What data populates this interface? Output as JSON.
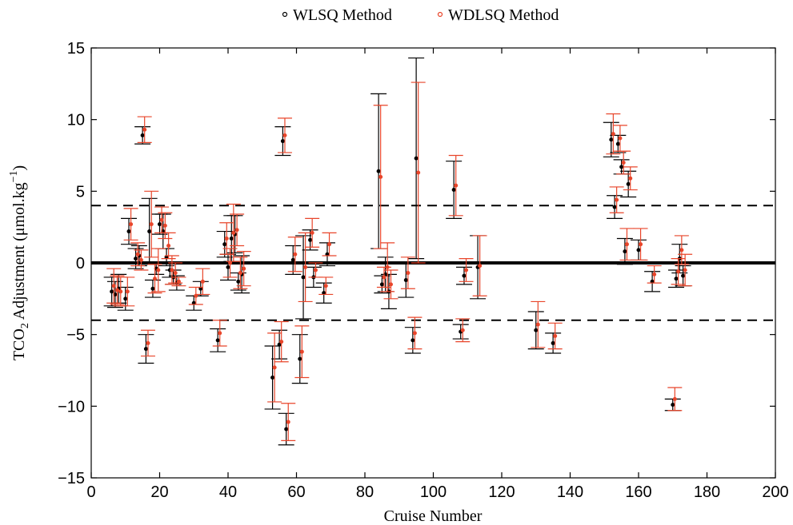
{
  "chart_data": {
    "type": "scatter",
    "xlabel": "Cruise Number",
    "ylabel_main": "TCO",
    "ylabel_sub": "2",
    "ylabel_rest": " Adjustment (μmol.kg",
    "ylabel_sup": "−1",
    "ylabel_close": ")",
    "xlim": [
      0,
      200
    ],
    "ylim": [
      -15,
      15
    ],
    "xticks": [
      "0",
      "20",
      "40",
      "60",
      "80",
      "100",
      "120",
      "140",
      "160",
      "180",
      "200"
    ],
    "yticks": [
      "−15",
      "−10",
      "−5",
      "0",
      "5",
      "10",
      "15"
    ],
    "xtick_values": [
      0,
      20,
      40,
      60,
      80,
      100,
      120,
      140,
      160,
      180,
      200
    ],
    "ytick_values": [
      -15,
      -10,
      -5,
      0,
      5,
      10,
      15
    ],
    "grid": false,
    "legend_position": "top-outside",
    "reference_lines": {
      "zero": 0,
      "dashed": [
        4,
        -4
      ]
    },
    "series": [
      {
        "name": "WLSQ Method",
        "color": "#000000",
        "points": [
          {
            "x": 6,
            "y": -2.0,
            "e": 1.0
          },
          {
            "x": 7,
            "y": -2.2,
            "e": 0.9
          },
          {
            "x": 8,
            "y": -1.8,
            "e": 1.0
          },
          {
            "x": 10,
            "y": -2.5,
            "e": 0.8
          },
          {
            "x": 11,
            "y": 2.2,
            "e": 0.9
          },
          {
            "x": 13,
            "y": 0.3,
            "e": 0.7
          },
          {
            "x": 14,
            "y": 0.5,
            "e": 0.7
          },
          {
            "x": 15,
            "y": 8.9,
            "e": 0.6
          },
          {
            "x": 16,
            "y": -6.0,
            "e": 1.0
          },
          {
            "x": 17,
            "y": 2.2,
            "e": 2.3
          },
          {
            "x": 18,
            "y": -1.8,
            "e": 0.6
          },
          {
            "x": 19,
            "y": -0.4,
            "e": 0.4
          },
          {
            "x": 20,
            "y": 2.7,
            "e": 0.7
          },
          {
            "x": 21,
            "y": 2.2,
            "e": 1.2
          },
          {
            "x": 22,
            "y": 0.4,
            "e": 0.6
          },
          {
            "x": 23,
            "y": -0.5,
            "e": 0.5
          },
          {
            "x": 24,
            "y": -1.0,
            "e": 0.5
          },
          {
            "x": 25,
            "y": -1.4,
            "e": 0.5
          },
          {
            "x": 30,
            "y": -2.8,
            "e": 0.5
          },
          {
            "x": 32,
            "y": -1.8,
            "e": 0.5
          },
          {
            "x": 37,
            "y": -5.4,
            "e": 0.8
          },
          {
            "x": 39,
            "y": 1.3,
            "e": 0.9
          },
          {
            "x": 40,
            "y": -0.3,
            "e": 0.9
          },
          {
            "x": 41,
            "y": 1.7,
            "e": 1.6
          },
          {
            "x": 42,
            "y": 2.0,
            "e": 1.3
          },
          {
            "x": 43,
            "y": -1.3,
            "e": 0.6
          },
          {
            "x": 44,
            "y": -0.8,
            "e": 1.3
          },
          {
            "x": 53,
            "y": -8.0,
            "e": 2.2
          },
          {
            "x": 55,
            "y": -5.7,
            "e": 1.0
          },
          {
            "x": 56,
            "y": 8.5,
            "e": 1.0
          },
          {
            "x": 57,
            "y": -11.6,
            "e": 1.1
          },
          {
            "x": 59,
            "y": 0.2,
            "e": 1.0
          },
          {
            "x": 61,
            "y": -6.7,
            "e": 1.7
          },
          {
            "x": 62,
            "y": -1.0,
            "e": 2.9
          },
          {
            "x": 64,
            "y": 1.6,
            "e": 0.7
          },
          {
            "x": 65,
            "y": -1.0,
            "e": 0.7
          },
          {
            "x": 68,
            "y": -2.1,
            "e": 0.7
          },
          {
            "x": 69,
            "y": 0.6,
            "e": 0.8
          },
          {
            "x": 84,
            "y": 6.4,
            "e": 5.4
          },
          {
            "x": 85,
            "y": -1.5,
            "e": 0.6
          },
          {
            "x": 86,
            "y": -0.8,
            "e": 1.2
          },
          {
            "x": 87,
            "y": -2.0,
            "e": 1.2
          },
          {
            "x": 92,
            "y": -1.2,
            "e": 1.2
          },
          {
            "x": 94,
            "y": -5.4,
            "e": 0.9
          },
          {
            "x": 95,
            "y": 7.3,
            "e": 7.0
          },
          {
            "x": 106,
            "y": 5.1,
            "e": 2.0
          },
          {
            "x": 108,
            "y": -4.8,
            "e": 0.5
          },
          {
            "x": 109,
            "y": -0.9,
            "e": 0.6
          },
          {
            "x": 113,
            "y": -0.3,
            "e": 2.2
          },
          {
            "x": 130,
            "y": -4.7,
            "e": 1.3
          },
          {
            "x": 135,
            "y": -5.6,
            "e": 0.7
          },
          {
            "x": 152,
            "y": 8.6,
            "e": 1.2
          },
          {
            "x": 153,
            "y": 3.9,
            "e": 0.8
          },
          {
            "x": 154,
            "y": 8.3,
            "e": 0.6
          },
          {
            "x": 155,
            "y": 6.7,
            "e": 0.5
          },
          {
            "x": 156,
            "y": 0.8,
            "e": 0.9
          },
          {
            "x": 157,
            "y": 5.5,
            "e": 0.9
          },
          {
            "x": 160,
            "y": 0.9,
            "e": 0.7
          },
          {
            "x": 164,
            "y": -1.3,
            "e": 0.7
          },
          {
            "x": 170,
            "y": -9.9,
            "e": 0.4
          },
          {
            "x": 171,
            "y": -1.1,
            "e": 0.6
          },
          {
            "x": 172,
            "y": 0.3,
            "e": 1.0
          },
          {
            "x": 173,
            "y": -0.9,
            "e": 0.7
          }
        ]
      },
      {
        "name": "WDLSQ Method",
        "color": "#e8452a",
        "points": [
          {
            "x": 6,
            "y": -1.6,
            "e": 1.2
          },
          {
            "x": 7,
            "y": -1.9,
            "e": 1.0
          },
          {
            "x": 8,
            "y": -2.0,
            "e": 1.0
          },
          {
            "x": 10,
            "y": -2.0,
            "e": 1.0
          },
          {
            "x": 11,
            "y": 2.7,
            "e": 1.1
          },
          {
            "x": 13,
            "y": 0.6,
            "e": 0.8
          },
          {
            "x": 14,
            "y": 0.2,
            "e": 0.7
          },
          {
            "x": 15,
            "y": 9.3,
            "e": 0.9
          },
          {
            "x": 16,
            "y": -5.6,
            "e": 0.9
          },
          {
            "x": 17,
            "y": 2.7,
            "e": 2.3
          },
          {
            "x": 18,
            "y": -1.1,
            "e": 1.0
          },
          {
            "x": 19,
            "y": -0.5,
            "e": 1.5
          },
          {
            "x": 20,
            "y": 3.0,
            "e": 0.9
          },
          {
            "x": 21,
            "y": 2.6,
            "e": 0.9
          },
          {
            "x": 22,
            "y": 1.2,
            "e": 0.9
          },
          {
            "x": 23,
            "y": -0.5,
            "e": 1.0
          },
          {
            "x": 24,
            "y": -0.7,
            "e": 0.7
          },
          {
            "x": 25,
            "y": -1.3,
            "e": 0.3
          },
          {
            "x": 30,
            "y": -2.3,
            "e": 0.6
          },
          {
            "x": 32,
            "y": -1.3,
            "e": 0.9
          },
          {
            "x": 37,
            "y": -4.9,
            "e": 0.9
          },
          {
            "x": 39,
            "y": 1.7,
            "e": 1.1
          },
          {
            "x": 40,
            "y": 0.0,
            "e": 1.0
          },
          {
            "x": 41,
            "y": 2.1,
            "e": 2.0
          },
          {
            "x": 42,
            "y": 2.3,
            "e": 1.1
          },
          {
            "x": 43,
            "y": -0.7,
            "e": 1.1
          },
          {
            "x": 44,
            "y": -0.4,
            "e": 1.2
          },
          {
            "x": 53,
            "y": -7.3,
            "e": 2.4
          },
          {
            "x": 55,
            "y": -5.5,
            "e": 1.4
          },
          {
            "x": 56,
            "y": 8.9,
            "e": 1.2
          },
          {
            "x": 57,
            "y": -11.1,
            "e": 1.3
          },
          {
            "x": 59,
            "y": 0.6,
            "e": 1.2
          },
          {
            "x": 61,
            "y": -6.2,
            "e": 1.8
          },
          {
            "x": 62,
            "y": -0.3,
            "e": 2.4
          },
          {
            "x": 64,
            "y": 2.1,
            "e": 1.0
          },
          {
            "x": 65,
            "y": -0.5,
            "e": 0.5
          },
          {
            "x": 68,
            "y": -1.6,
            "e": 0.6
          },
          {
            "x": 69,
            "y": 1.3,
            "e": 0.8
          },
          {
            "x": 84,
            "y": 6.0,
            "e": 5.0
          },
          {
            "x": 85,
            "y": -1.0,
            "e": 0.7
          },
          {
            "x": 86,
            "y": -0.3,
            "e": 1.7
          },
          {
            "x": 87,
            "y": -1.5,
            "e": 1.0
          },
          {
            "x": 92,
            "y": -0.7,
            "e": 1.1
          },
          {
            "x": 94,
            "y": -4.9,
            "e": 1.1
          },
          {
            "x": 95,
            "y": 6.3,
            "e": 6.3
          },
          {
            "x": 106,
            "y": 5.4,
            "e": 2.1
          },
          {
            "x": 108,
            "y": -4.7,
            "e": 0.8
          },
          {
            "x": 109,
            "y": -0.5,
            "e": 0.8
          },
          {
            "x": 113,
            "y": -0.2,
            "e": 2.1
          },
          {
            "x": 130,
            "y": -4.3,
            "e": 1.6
          },
          {
            "x": 135,
            "y": -5.1,
            "e": 0.9
          },
          {
            "x": 152,
            "y": 9.0,
            "e": 1.4
          },
          {
            "x": 153,
            "y": 4.4,
            "e": 0.9
          },
          {
            "x": 154,
            "y": 8.7,
            "e": 0.9
          },
          {
            "x": 155,
            "y": 7.0,
            "e": 0.8
          },
          {
            "x": 156,
            "y": 1.3,
            "e": 1.1
          },
          {
            "x": 157,
            "y": 5.9,
            "e": 0.8
          },
          {
            "x": 160,
            "y": 1.3,
            "e": 1.1
          },
          {
            "x": 164,
            "y": -0.8,
            "e": 0.6
          },
          {
            "x": 170,
            "y": -9.5,
            "e": 0.8
          },
          {
            "x": 171,
            "y": -0.6,
            "e": 0.9
          },
          {
            "x": 172,
            "y": 0.9,
            "e": 1.0
          },
          {
            "x": 173,
            "y": -0.5,
            "e": 1.1
          }
        ]
      }
    ]
  }
}
